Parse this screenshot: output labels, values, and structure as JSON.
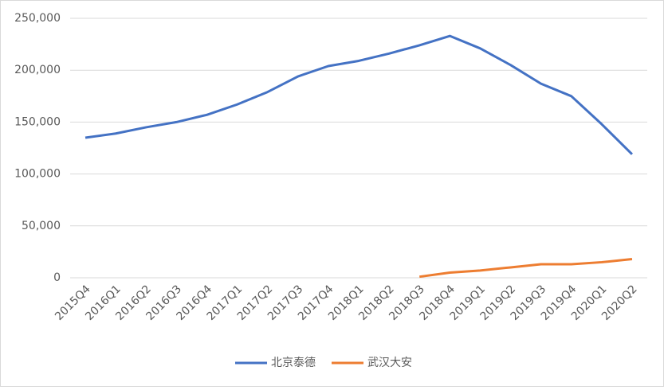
{
  "chart_data": {
    "type": "line",
    "categories": [
      "2015Q4",
      "2016Q1",
      "2016Q2",
      "2016Q3",
      "2016Q4",
      "2017Q1",
      "2017Q2",
      "2017Q3",
      "2017Q4",
      "2018Q1",
      "2018Q2",
      "2018Q3",
      "2018Q4",
      "2019Q1",
      "2019Q2",
      "2019Q3",
      "2019Q4",
      "2020Q1",
      "2020Q2"
    ],
    "series": [
      {
        "name": "北京泰德",
        "color": "#4472c4",
        "values": [
          135000,
          139000,
          145000,
          150000,
          157000,
          167000,
          179000,
          194000,
          204000,
          209000,
          216000,
          224000,
          233000,
          221000,
          205000,
          187000,
          175000,
          148000,
          119000
        ]
      },
      {
        "name": "武汉大安",
        "color": "#ed7d31",
        "values": [
          null,
          null,
          null,
          null,
          null,
          null,
          null,
          null,
          null,
          null,
          null,
          1000,
          5000,
          7000,
          10000,
          13000,
          13000,
          15000,
          18000
        ]
      }
    ],
    "ylim": [
      0,
      250000
    ],
    "yticks": [
      0,
      {
        "value": 50000,
        "label": "50,000"
      },
      {
        "value": 100000,
        "label": "100,000"
      },
      {
        "value": 150000,
        "label": "150,000"
      },
      {
        "value": 200000,
        "label": "200,000"
      },
      {
        "value": 250000,
        "label": "250,000"
      }
    ],
    "grid": true,
    "legend": "bottom"
  }
}
